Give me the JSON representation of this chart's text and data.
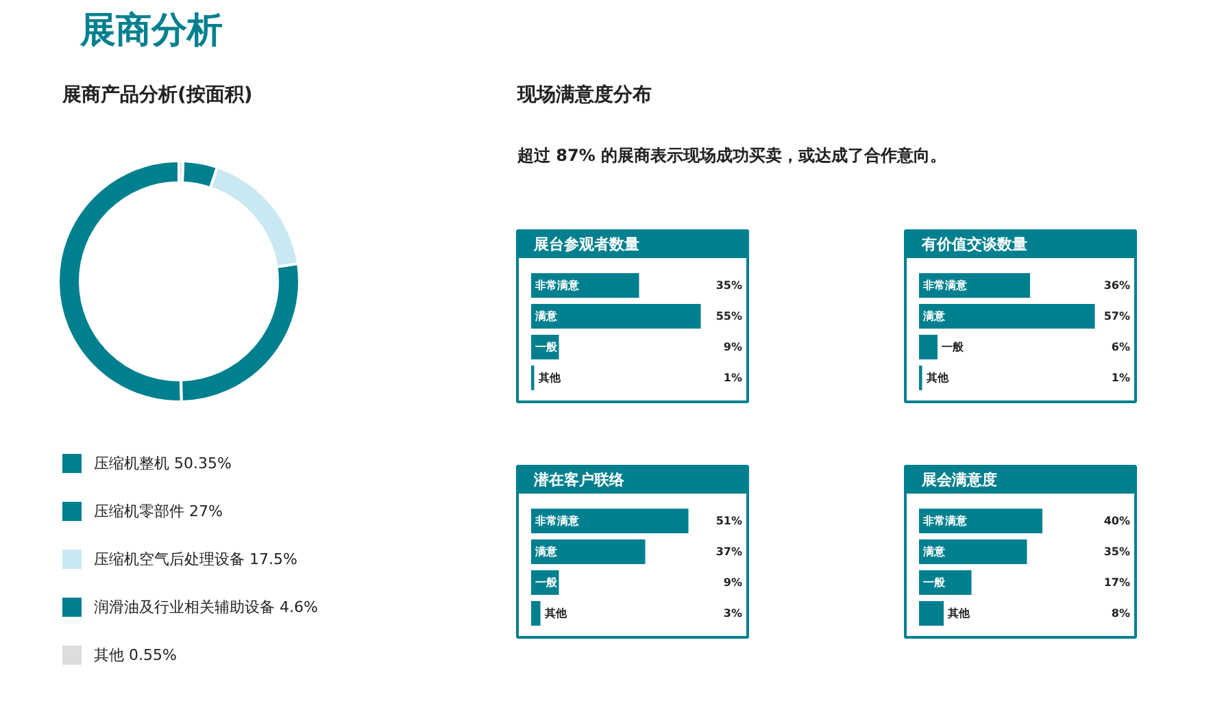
{
  "chart_data": [
    {
      "type": "other",
      "title": "展商分析"
    },
    {
      "type": "donut",
      "title": "展商产品分析(按面积)",
      "categories": [
        "压缩机整机 50.35%",
        "压缩机零部件 27%",
        "压缩机空气后处理设备 17.5%",
        "润滑油及行业相关辅助设备 4.6%",
        "其他 0.55%"
      ],
      "values": [
        50.35,
        27,
        17.5,
        4.6,
        0.55
      ],
      "colors": [
        "#00808f",
        "#00808f",
        "#c9e8f2",
        "#00808f",
        "#dddddd"
      ],
      "legend": "bottom"
    },
    {
      "type": "other",
      "title": "现场满意度分布",
      "subtitle": "超过 87% 的展商表示现场成功买卖，或达成了合作意向。"
    },
    {
      "type": "bar",
      "orientation": "horizontal",
      "title": "展台参观者数量",
      "categories": [
        "非常满意",
        "满意",
        "一般",
        "其他"
      ],
      "values": [
        35,
        55,
        9,
        1
      ],
      "value_labels": [
        "35%",
        "55%",
        "9%",
        "1%"
      ],
      "color": "#00808f"
    },
    {
      "type": "bar",
      "orientation": "horizontal",
      "title": "有价值交谈数量",
      "categories": [
        "非常满意",
        "满意",
        "一般",
        "其他"
      ],
      "values": [
        36,
        57,
        6,
        1
      ],
      "value_labels": [
        "36%",
        "57%",
        "6%",
        "1%"
      ],
      "color": "#00808f"
    },
    {
      "type": "bar",
      "orientation": "horizontal",
      "title": "潜在客户联络",
      "categories": [
        "非常满意",
        "满意",
        "一般",
        "其他"
      ],
      "values": [
        51,
        37,
        9,
        3
      ],
      "value_labels": [
        "51%",
        "37%",
        "9%",
        "3%"
      ],
      "color": "#00808f"
    },
    {
      "type": "bar",
      "orientation": "horizontal",
      "title": "展会满意度",
      "categories": [
        "非常满意",
        "满意",
        "一般",
        "其他"
      ],
      "values": [
        40,
        35,
        17,
        8
      ],
      "value_labels": [
        "40%",
        "35%",
        "17%",
        "8%"
      ],
      "color": "#00808f"
    }
  ]
}
